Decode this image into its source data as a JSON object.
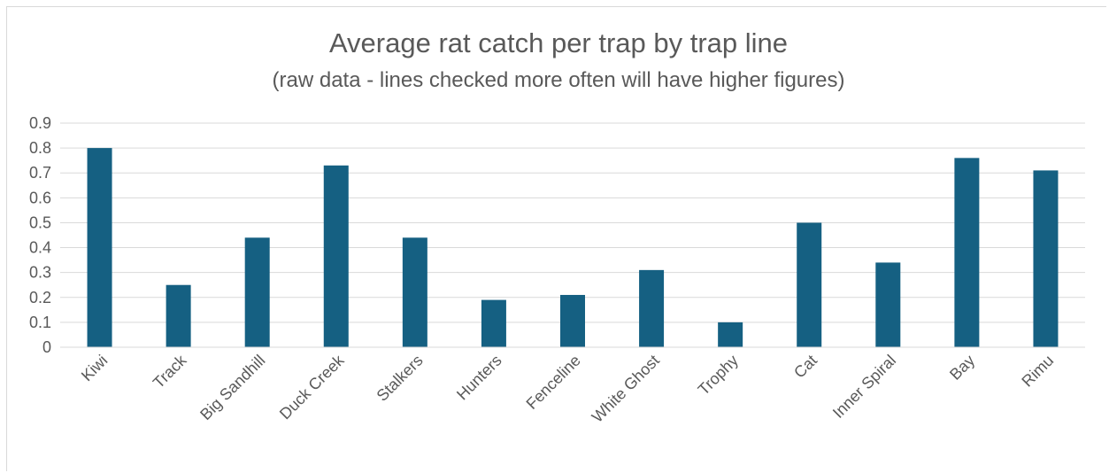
{
  "chart_data": {
    "type": "bar",
    "title": "Average rat catch per trap by trap line",
    "subtitle": "(raw data - lines checked more often will have higher figures)",
    "xlabel": "",
    "ylabel": "",
    "categories": [
      "Kiwi",
      "Track",
      "Big Sandhill",
      "Duck Creek",
      "Stalkers",
      "Hunters",
      "Fenceline",
      "White Ghost",
      "Trophy",
      "Cat",
      "Inner Spiral",
      "Bay",
      "Rimu"
    ],
    "values": [
      0.8,
      0.25,
      0.44,
      0.73,
      0.44,
      0.19,
      0.21,
      0.31,
      0.1,
      0.5,
      0.34,
      0.76,
      0.71
    ],
    "ylim": [
      0,
      0.9
    ],
    "yticks": [
      "0",
      "0.1",
      "0.2",
      "0.3",
      "0.4",
      "0.5",
      "0.6",
      "0.7",
      "0.8",
      "0.9"
    ],
    "grid": true,
    "legend": "none",
    "bar_color": "#156082",
    "grid_color": "#d9d9d9"
  }
}
